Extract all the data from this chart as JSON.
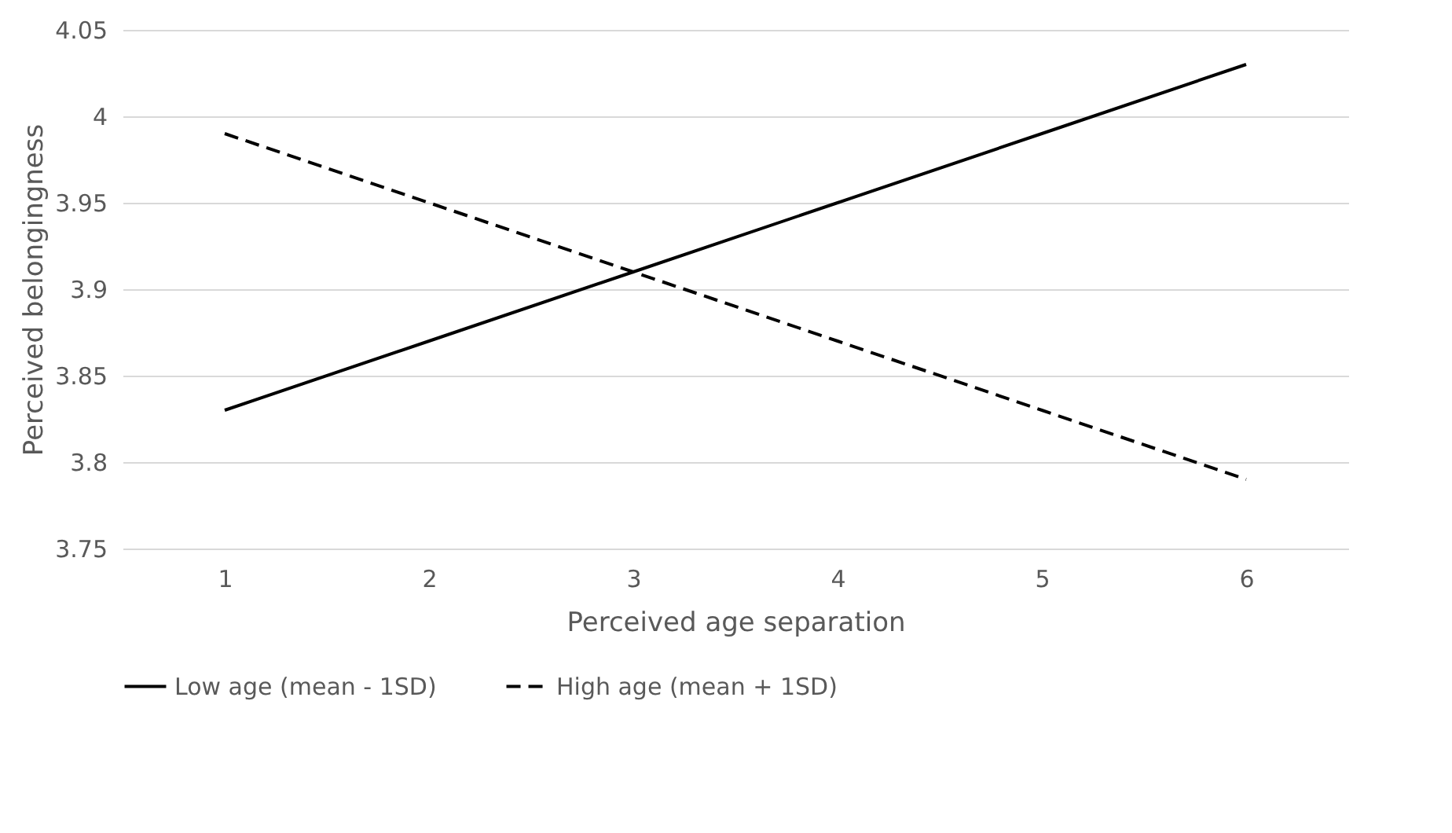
{
  "chart_data": {
    "type": "line",
    "xlabel": "Perceived age separation",
    "ylabel": "Perceived belongingness",
    "categories": [
      "1",
      "2",
      "3",
      "4",
      "5",
      "6"
    ],
    "series": [
      {
        "name": "Low age (mean - 1SD)",
        "color": "#000000",
        "line_style": "solid",
        "values": [
          3.83,
          3.87,
          3.91,
          3.95,
          3.99,
          4.03
        ]
      },
      {
        "name": "High age (mean + 1SD)",
        "color": "#000000",
        "line_style": "dashed",
        "values": [
          3.99,
          3.95,
          3.91,
          3.87,
          3.83,
          3.79
        ]
      }
    ],
    "ylim": [
      3.75,
      4.05
    ],
    "yticks": [
      3.75,
      3.8,
      3.85,
      3.9,
      3.95,
      4,
      4.05
    ],
    "grid": "y",
    "legend": "bottom",
    "marker": "none"
  }
}
